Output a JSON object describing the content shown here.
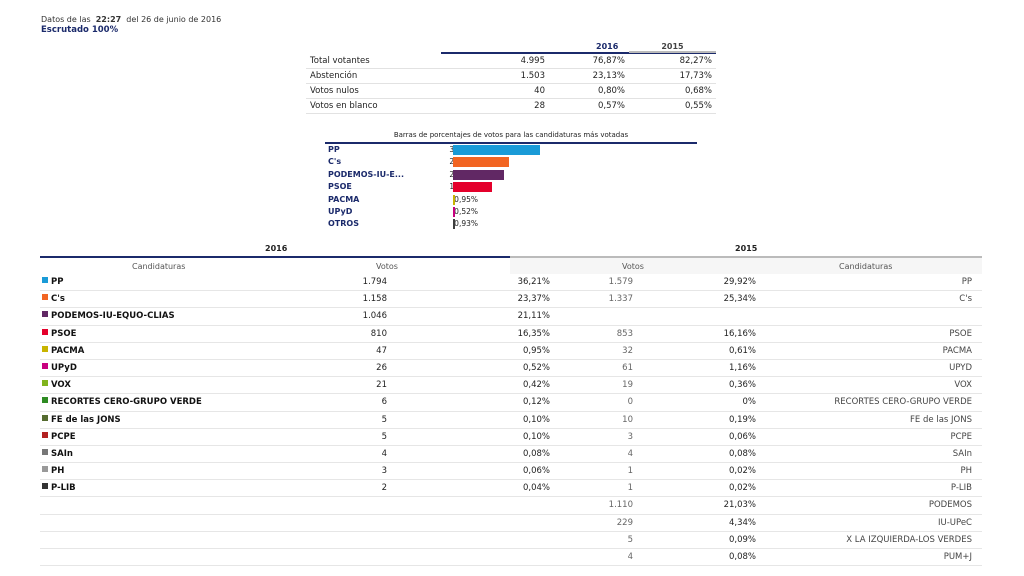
{
  "header": {
    "prefix": "Datos de las",
    "time": "22:27",
    "date": "del 26 de junio de 2016",
    "scrutiny": "Escrutado 100%"
  },
  "summary": {
    "col_2016": "2016",
    "col_2015": "2015",
    "rows": [
      {
        "label": "Total votantes",
        "votes": "4.995",
        "pct": "76,87%",
        "pct2015": "82,27%"
      },
      {
        "label": "Abstención",
        "votes": "1.503",
        "pct": "23,13%",
        "pct2015": "17,73%"
      },
      {
        "label": "Votos nulos",
        "votes": "40",
        "pct": "0,80%",
        "pct2015": "0,68%"
      },
      {
        "label": "Votos en blanco",
        "votes": "28",
        "pct": "0,57%",
        "pct2015": "0,55%"
      }
    ]
  },
  "chart_data": {
    "type": "bar",
    "title": "Barras de porcentajes de votos para las candidaturas más votadas",
    "categories": [
      "PP",
      "C's",
      "PODEMOS-IU-E...",
      "PSOE",
      "PACMA",
      "UPyD",
      "OTROS"
    ],
    "values": [
      36.21,
      23.37,
      21.11,
      16.35,
      0.95,
      0.52,
      0.93
    ],
    "labels": [
      "36,21%",
      "23,37%",
      "21,11%",
      "16,35%",
      "0,95%",
      "0,52%",
      "0,93%"
    ],
    "colors": [
      "#1a9bd7",
      "#f26522",
      "#612864",
      "#e4002b",
      "#c8b400",
      "#c8007e",
      "#3c3c3c"
    ]
  },
  "results": {
    "year_2016": "2016",
    "year_2015": "2015",
    "col_candidaturas": "Candidaturas",
    "col_votos": "Votos",
    "col_votos_2015": "Votos",
    "col_candidaturas_2015": "Candidaturas",
    "rows": [
      {
        "name": "PP",
        "color": "#1a9bd7",
        "v16": "1.794",
        "p16": "36,21%",
        "v15": "1.579",
        "p15": "29,92%",
        "n15": "PP"
      },
      {
        "name": "C's",
        "color": "#f26522",
        "v16": "1.158",
        "p16": "23,37%",
        "v15": "1.337",
        "p15": "25,34%",
        "n15": "C's"
      },
      {
        "name": "PODEMOS-IU-EQUO-CLIAS",
        "color": "#612864",
        "v16": "1.046",
        "p16": "21,11%",
        "v15": "",
        "p15": "",
        "n15": ""
      },
      {
        "name": "PSOE",
        "color": "#e4002b",
        "v16": "810",
        "p16": "16,35%",
        "v15": "853",
        "p15": "16,16%",
        "n15": "PSOE"
      },
      {
        "name": "PACMA",
        "color": "#c8b400",
        "v16": "47",
        "p16": "0,95%",
        "v15": "32",
        "p15": "0,61%",
        "n15": "PACMA"
      },
      {
        "name": "UPyD",
        "color": "#c8007e",
        "v16": "26",
        "p16": "0,52%",
        "v15": "61",
        "p15": "1,16%",
        "n15": "UPYD"
      },
      {
        "name": "VOX",
        "color": "#80b41d",
        "v16": "21",
        "p16": "0,42%",
        "v15": "19",
        "p15": "0,36%",
        "n15": "VOX"
      },
      {
        "name": "RECORTES CERO-GRUPO VERDE",
        "color": "#2e8b22",
        "v16": "6",
        "p16": "0,12%",
        "v15": "0",
        "p15": "0%",
        "n15": "RECORTES CERO-GRUPO VERDE"
      },
      {
        "name": "FE de las JONS",
        "color": "#556b2f",
        "v16": "5",
        "p16": "0,10%",
        "v15": "10",
        "p15": "0,19%",
        "n15": "FE de las JONS"
      },
      {
        "name": "PCPE",
        "color": "#b22222",
        "v16": "5",
        "p16": "0,10%",
        "v15": "3",
        "p15": "0,06%",
        "n15": "PCPE"
      },
      {
        "name": "SAIn",
        "color": "#777777",
        "v16": "4",
        "p16": "0,08%",
        "v15": "4",
        "p15": "0,08%",
        "n15": "SAIn"
      },
      {
        "name": "PH",
        "color": "#999999",
        "v16": "3",
        "p16": "0,06%",
        "v15": "1",
        "p15": "0,02%",
        "n15": "PH"
      },
      {
        "name": "P-LIB",
        "color": "#333333",
        "v16": "2",
        "p16": "0,04%",
        "v15": "1",
        "p15": "0,02%",
        "n15": "P-LIB"
      },
      {
        "name": "",
        "color": "",
        "v16": "",
        "p16": "",
        "v15": "1.110",
        "p15": "21,03%",
        "n15": "PODEMOS"
      },
      {
        "name": "",
        "color": "",
        "v16": "",
        "p16": "",
        "v15": "229",
        "p15": "4,34%",
        "n15": "IU-UPeC"
      },
      {
        "name": "",
        "color": "",
        "v16": "",
        "p16": "",
        "v15": "5",
        "p15": "0,09%",
        "n15": "X LA IZQUIERDA-LOS VERDES"
      },
      {
        "name": "",
        "color": "",
        "v16": "",
        "p16": "",
        "v15": "4",
        "p15": "0,08%",
        "n15": "PUM+J"
      }
    ]
  }
}
